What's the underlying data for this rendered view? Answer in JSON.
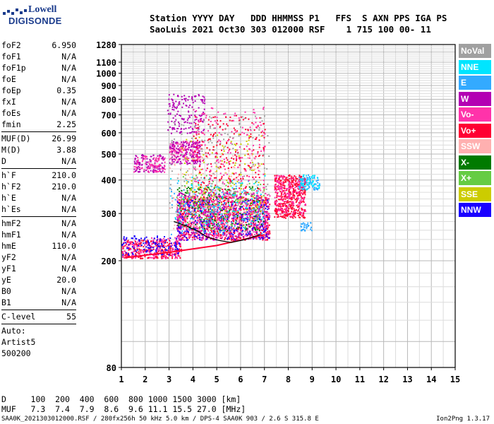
{
  "logo": {
    "line1": "Lowell",
    "line2": "DIGISONDE"
  },
  "header": {
    "line1": "Station YYYY DAY   DDD HHMMSS P1   FFS  S AXN PPS IGA PS",
    "line2": "SaoLuis 2021 Oct30 303 012000 RSF    1 715 100 00- 11"
  },
  "params": [
    {
      "k": "foF2",
      "v": "6.950"
    },
    {
      "k": "foF1",
      "v": "N/A"
    },
    {
      "k": "foF1p",
      "v": "N/A"
    },
    {
      "k": "foE",
      "v": "N/A"
    },
    {
      "k": "foEp",
      "v": "0.35"
    },
    {
      "k": "fxI",
      "v": "N/A"
    },
    {
      "k": "foEs",
      "v": "N/A"
    },
    {
      "k": "fmin",
      "v": "2.25"
    },
    {
      "sep": true
    },
    {
      "k": "MUF(D)",
      "v": "26.99"
    },
    {
      "k": "M(D)",
      "v": "3.88"
    },
    {
      "k": "D",
      "v": "N/A"
    },
    {
      "sep": true
    },
    {
      "k": "h`F",
      "v": "210.0"
    },
    {
      "k": "h`F2",
      "v": "210.0"
    },
    {
      "k": "h`E",
      "v": "N/A"
    },
    {
      "k": "h`Es",
      "v": "N/A"
    },
    {
      "sep": true
    },
    {
      "k": "hmF2",
      "v": "N/A"
    },
    {
      "k": "hmF1",
      "v": "N/A"
    },
    {
      "k": "hmE",
      "v": "110.0"
    },
    {
      "k": "yF2",
      "v": "N/A"
    },
    {
      "k": "yF1",
      "v": "N/A"
    },
    {
      "k": "yE",
      "v": "20.0"
    },
    {
      "k": "B0",
      "v": "N/A"
    },
    {
      "k": "B1",
      "v": "N/A"
    },
    {
      "sep": true
    },
    {
      "k": "C-level",
      "v": "55"
    },
    {
      "sep": true
    },
    {
      "k": "Auto:",
      "v": ""
    },
    {
      "k": "Artist5",
      "v": ""
    },
    {
      "k": "500200",
      "v": ""
    }
  ],
  "bottom": {
    "line1": "D     100  200  400  600  800 1000 1500 3000 [km]",
    "line2": "MUF   7.3  7.4  7.9  8.6  9.6 11.1 15.5 27.0 [MHz]"
  },
  "footer": {
    "left": "SAA0K_2021303012000.RSF / 280fx256h 50 kHz 5.0 km / DPS-4 SAA0K 903 / 2.6 S 315.8 E",
    "right": "Ion2Png 1.3.17"
  },
  "legend": [
    {
      "label": "NoVal",
      "color": "#a0a0a0"
    },
    {
      "label": "NNE",
      "color": "#00e5ff"
    },
    {
      "label": "E",
      "color": "#33aaff"
    },
    {
      "label": "W",
      "color": "#b300b3"
    },
    {
      "label": "Vo-",
      "color": "#ff33aa"
    },
    {
      "label": "Vo+",
      "color": "#ff0033"
    },
    {
      "label": "SSW",
      "color": "#ffb0b0"
    },
    {
      "label": "X-",
      "color": "#007a00"
    },
    {
      "label": "X+",
      "color": "#66cc44"
    },
    {
      "label": "SSE",
      "color": "#cccc00"
    },
    {
      "label": "NNW",
      "color": "#1a00ff"
    }
  ],
  "chart_data": {
    "type": "scatter",
    "xlabel": "",
    "ylabel": "",
    "xlim": [
      1,
      15
    ],
    "ylim": [
      80,
      1280
    ],
    "y_scale": "log",
    "grid": true,
    "x_ticks": [
      "1",
      "2",
      "3",
      "4",
      "5",
      "6",
      "7",
      "8",
      "9",
      "10",
      "11",
      "12",
      "13",
      "14",
      "15"
    ],
    "y_ticks": [
      {
        "v": 80,
        "label": "80"
      },
      {
        "v": 200,
        "label": "200"
      },
      {
        "v": 300,
        "label": "300"
      },
      {
        "v": 400,
        "label": "400"
      },
      {
        "v": 500,
        "label": "500"
      },
      {
        "v": 600,
        "label": "600"
      },
      {
        "v": 700,
        "label": "700"
      },
      {
        "v": 800,
        "label": "800"
      },
      {
        "v": 900,
        "label": "900"
      },
      {
        "v": 1000,
        "label": "1000"
      },
      {
        "v": 1100,
        "label": "1100"
      },
      {
        "v": 1280,
        "label": "1280"
      }
    ],
    "clusters": [
      {
        "series": "Vo+",
        "x_range": [
          1.0,
          3.5
        ],
        "y_range": [
          205,
          240
        ],
        "n": 260
      },
      {
        "series": "Vo-",
        "x_range": [
          1.0,
          3.5
        ],
        "y_range": [
          205,
          245
        ],
        "n": 180
      },
      {
        "series": "NNW",
        "x_range": [
          1.0,
          3.5
        ],
        "y_range": [
          210,
          250
        ],
        "n": 120
      },
      {
        "series": "W",
        "x_range": [
          1.5,
          2.8
        ],
        "y_range": [
          430,
          500
        ],
        "n": 110
      },
      {
        "series": "Vo-",
        "x_range": [
          1.5,
          2.8
        ],
        "y_range": [
          430,
          500
        ],
        "n": 80
      },
      {
        "series": "W",
        "x_range": [
          2.9,
          4.5
        ],
        "y_range": [
          600,
          840
        ],
        "n": 160
      },
      {
        "series": "Vo-",
        "x_range": [
          3.0,
          4.3
        ],
        "y_range": [
          470,
          560
        ],
        "n": 150
      },
      {
        "series": "W",
        "x_range": [
          3.0,
          4.3
        ],
        "y_range": [
          460,
          560
        ],
        "n": 130
      },
      {
        "series": "Vo+",
        "x_range": [
          3.3,
          7.2
        ],
        "y_range": [
          240,
          350
        ],
        "n": 700
      },
      {
        "series": "Vo-",
        "x_range": [
          3.3,
          7.2
        ],
        "y_range": [
          240,
          360
        ],
        "n": 600
      },
      {
        "series": "W",
        "x_range": [
          3.3,
          7.2
        ],
        "y_range": [
          240,
          360
        ],
        "n": 350
      },
      {
        "series": "NNW",
        "x_range": [
          3.3,
          7.2
        ],
        "y_range": [
          240,
          340
        ],
        "n": 200
      },
      {
        "series": "X-",
        "x_range": [
          3.3,
          7.0
        ],
        "y_range": [
          260,
          380
        ],
        "n": 160
      },
      {
        "series": "X+",
        "x_range": [
          3.3,
          7.0
        ],
        "y_range": [
          260,
          420
        ],
        "n": 140
      },
      {
        "series": "SSE",
        "x_range": [
          3.5,
          7.0
        ],
        "y_range": [
          300,
          600
        ],
        "n": 150
      },
      {
        "series": "E",
        "x_range": [
          3.0,
          7.0
        ],
        "y_range": [
          250,
          400
        ],
        "n": 140
      },
      {
        "series": "NNE",
        "x_range": [
          3.0,
          7.0
        ],
        "y_range": [
          260,
          420
        ],
        "n": 90
      },
      {
        "series": "SSW",
        "x_range": [
          3.0,
          7.0
        ],
        "y_range": [
          260,
          500
        ],
        "n": 140
      },
      {
        "series": "Vo+",
        "x_range": [
          4.0,
          7.0
        ],
        "y_range": [
          360,
          700
        ],
        "n": 220
      },
      {
        "series": "Vo-",
        "x_range": [
          4.0,
          7.0
        ],
        "y_range": [
          360,
          750
        ],
        "n": 160
      },
      {
        "series": "NoVal",
        "x_range": [
          3.0,
          7.2
        ],
        "y_range": [
          300,
          700
        ],
        "n": 150
      },
      {
        "series": "Vo+",
        "x_range": [
          7.4,
          8.7
        ],
        "y_range": [
          290,
          420
        ],
        "n": 420
      },
      {
        "series": "Vo-",
        "x_range": [
          7.4,
          8.7
        ],
        "y_range": [
          290,
          420
        ],
        "n": 160
      },
      {
        "series": "E",
        "x_range": [
          8.4,
          9.3
        ],
        "y_range": [
          370,
          420
        ],
        "n": 70
      },
      {
        "series": "NNE",
        "x_range": [
          8.4,
          9.3
        ],
        "y_range": [
          370,
          420
        ],
        "n": 50
      },
      {
        "series": "E",
        "x_range": [
          8.5,
          9.0
        ],
        "y_range": [
          260,
          280
        ],
        "n": 30
      }
    ],
    "trace": {
      "color": "#000000",
      "points": [
        [
          3.2,
          280
        ],
        [
          3.7,
          270
        ],
        [
          4.2,
          258
        ],
        [
          4.6,
          245
        ],
        [
          5.1,
          238
        ],
        [
          5.6,
          234
        ],
        [
          6.2,
          240
        ],
        [
          6.8,
          250
        ]
      ]
    },
    "baseline": {
      "series": "Vo+",
      "points": [
        [
          1.1,
          205
        ],
        [
          3.0,
          215
        ],
        [
          5.0,
          228
        ],
        [
          7.0,
          250
        ]
      ]
    }
  }
}
